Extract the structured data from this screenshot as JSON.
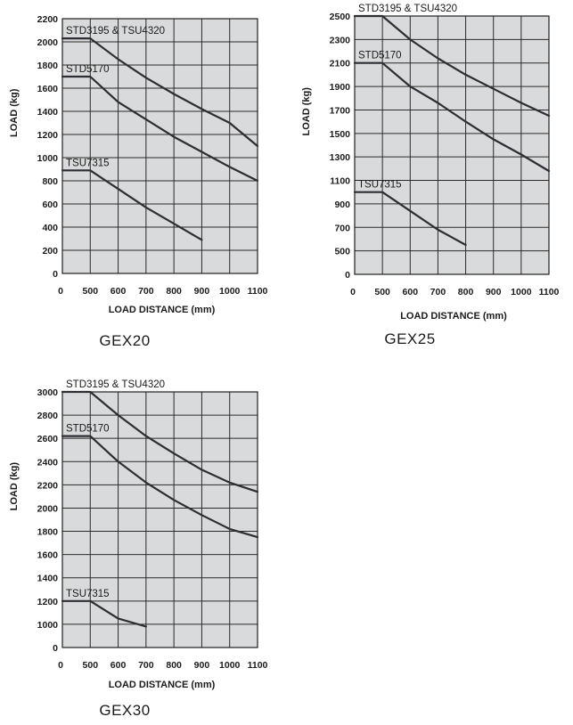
{
  "chart_data": [
    {
      "type": "line",
      "title": "GEX20",
      "xlabel": "LOAD DISTANCE (mm)",
      "ylabel": "LOAD (kg)",
      "x_ticks": [
        0,
        500,
        600,
        700,
        800,
        900,
        1000,
        1100
      ],
      "y_ticks": [
        0,
        200,
        400,
        600,
        800,
        1000,
        1200,
        1400,
        1600,
        1800,
        2000,
        2200
      ],
      "xlim": [
        0,
        1100
      ],
      "ylim": [
        0,
        2200
      ],
      "grid": true,
      "series": [
        {
          "name": "STD3195 & TSU4320",
          "x": [
            0,
            500,
            600,
            700,
            800,
            900,
            1000,
            1100
          ],
          "y": [
            2030,
            2030,
            1850,
            1690,
            1550,
            1420,
            1300,
            1100
          ]
        },
        {
          "name": "STD5170",
          "x": [
            0,
            500,
            600,
            700,
            800,
            900,
            1000,
            1100
          ],
          "y": [
            1700,
            1700,
            1480,
            1330,
            1180,
            1050,
            920,
            800
          ]
        },
        {
          "name": "TSU7315",
          "x": [
            0,
            500,
            600,
            700,
            800,
            900
          ],
          "y": [
            890,
            890,
            730,
            570,
            430,
            290
          ]
        }
      ]
    },
    {
      "type": "line",
      "title": "GEX25",
      "xlabel": "LOAD DISTANCE (mm)",
      "ylabel": "LOAD (kg)",
      "x_ticks": [
        0,
        500,
        600,
        700,
        800,
        900,
        1000,
        1100
      ],
      "x_tick_labels": [
        "0",
        "500",
        "600",
        "700",
        "800",
        "900",
        "1000",
        "1100"
      ],
      "y_ticks": [
        0,
        500,
        700,
        900,
        1100,
        1300,
        1500,
        1700,
        1900,
        2100,
        2300,
        2500
      ],
      "xlim": [
        0,
        1100
      ],
      "ylim": [
        0,
        2500
      ],
      "grid": true,
      "series": [
        {
          "name": "STD3195 & TSU4320",
          "x": [
            0,
            500,
            600,
            700,
            800,
            900,
            1000,
            1100
          ],
          "y": [
            2500,
            2500,
            2300,
            2140,
            2000,
            1880,
            1760,
            1650
          ]
        },
        {
          "name": "STD5170",
          "x": [
            0,
            500,
            600,
            700,
            800,
            900,
            1000,
            1100
          ],
          "y": [
            2100,
            2100,
            1900,
            1760,
            1600,
            1450,
            1320,
            1180
          ]
        },
        {
          "name": "TSU7315",
          "x": [
            0,
            500,
            600,
            700,
            800
          ],
          "y": [
            1000,
            1000,
            840,
            680,
            550
          ]
        }
      ]
    },
    {
      "type": "line",
      "title": "GEX30",
      "xlabel": "LOAD DISTANCE (mm)",
      "ylabel": "LOAD (kg)",
      "x_ticks": [
        0,
        500,
        600,
        700,
        800,
        900,
        1000,
        1100
      ],
      "y_ticks": [
        0,
        1000,
        1200,
        1400,
        1600,
        1800,
        2000,
        2200,
        2400,
        2600,
        2800,
        3000
      ],
      "xlim": [
        0,
        1100
      ],
      "ylim": [
        0,
        3000
      ],
      "grid": true,
      "series": [
        {
          "name": "STD3195 & TSU4320",
          "x": [
            0,
            500,
            600,
            700,
            800,
            900,
            1000,
            1100
          ],
          "y": [
            3000,
            3000,
            2800,
            2620,
            2470,
            2330,
            2220,
            2140
          ]
        },
        {
          "name": "STD5170",
          "x": [
            0,
            500,
            600,
            700,
            800,
            900,
            1000,
            1100
          ],
          "y": [
            2620,
            2620,
            2400,
            2220,
            2070,
            1940,
            1820,
            1750
          ]
        },
        {
          "name": "TSU7315",
          "x": [
            0,
            500,
            600,
            700
          ],
          "y": [
            1200,
            1200,
            1050,
            900
          ]
        }
      ]
    }
  ]
}
